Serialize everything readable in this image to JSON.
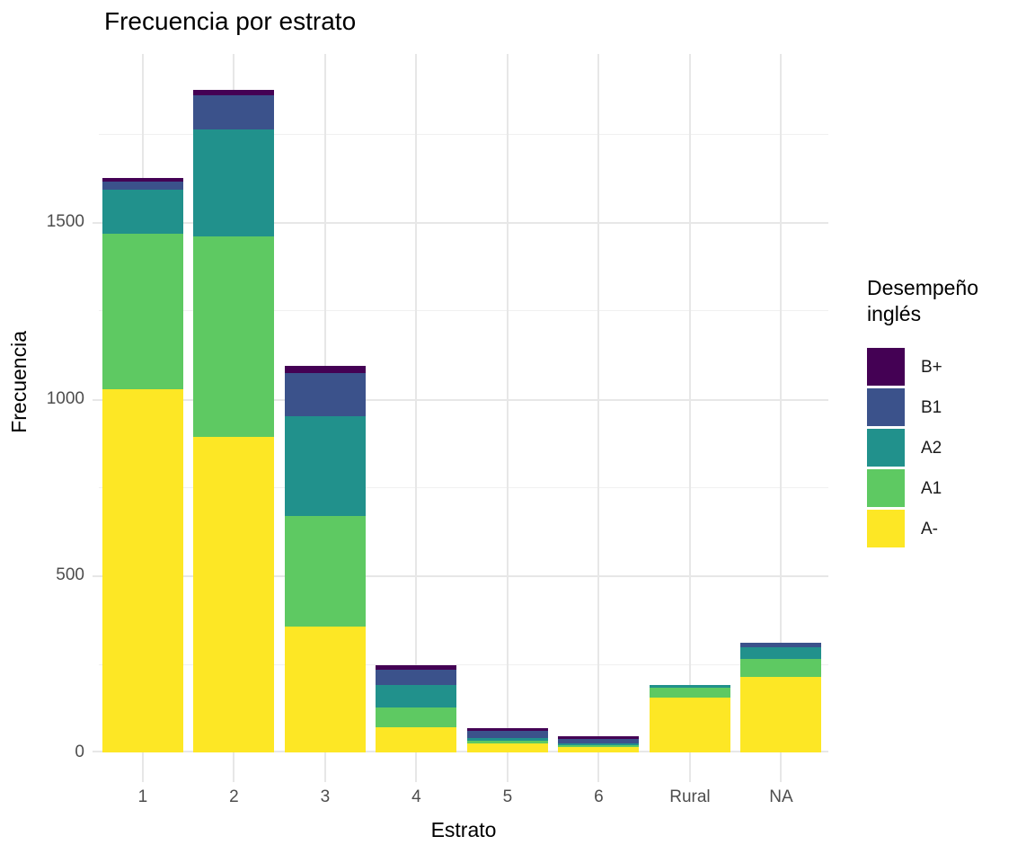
{
  "chart_data": {
    "type": "bar",
    "stacked": true,
    "title": "Frecuencia por estrato",
    "xlabel": "Estrato",
    "ylabel": "Frecuencia",
    "categories": [
      "1",
      "2",
      "3",
      "4",
      "5",
      "6",
      "Rural",
      "NA"
    ],
    "series": [
      {
        "name": "A-",
        "values": [
          1027,
          892,
          355,
          72,
          25,
          15,
          156,
          213
        ]
      },
      {
        "name": "A1",
        "values": [
          441,
          567,
          315,
          54,
          8,
          5,
          26,
          52
        ]
      },
      {
        "name": "A2",
        "values": [
          123,
          303,
          280,
          64,
          8,
          6,
          10,
          33
        ]
      },
      {
        "name": "B1",
        "values": [
          25,
          98,
          122,
          43,
          19,
          11,
          0,
          13
        ]
      },
      {
        "name": "B+",
        "values": [
          8,
          15,
          22,
          15,
          10,
          8,
          0,
          0
        ]
      }
    ],
    "totals": [
      1624,
      1875,
      1094,
      248,
      70,
      45,
      192,
      311
    ],
    "colors": {
      "B+": "#440154",
      "B1": "#3B528B",
      "A2": "#21918C",
      "A1": "#5EC962",
      "A-": "#FDE725"
    },
    "legend": {
      "title": "Desempeño inglés",
      "position": "right",
      "entries": [
        "B+",
        "B1",
        "A2",
        "A1",
        "A-"
      ]
    },
    "y_axis": {
      "ticks": [
        0,
        500,
        1000,
        1500
      ],
      "minor_ticks": [
        250,
        750,
        1250,
        1750
      ],
      "max": 1976
    },
    "grid": true,
    "text_colors": {
      "tick_label": "#4d4d4d",
      "title": "#000000"
    }
  }
}
